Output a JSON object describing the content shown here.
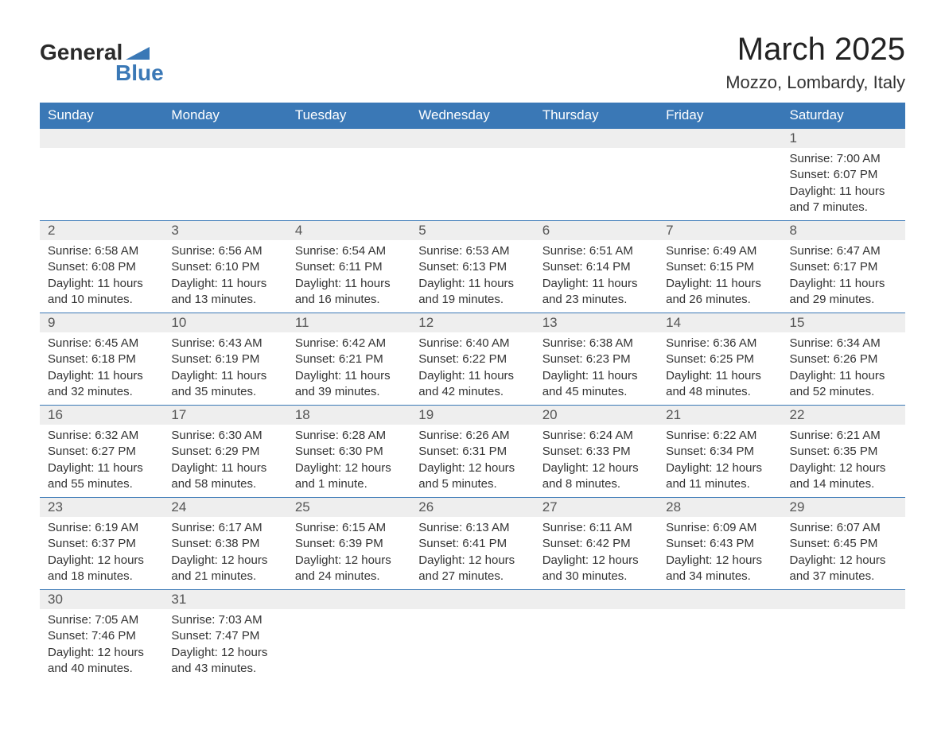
{
  "logo": {
    "text1": "General",
    "text2": "Blue",
    "icon_color": "#3a78b6"
  },
  "title": "March 2025",
  "location": "Mozzo, Lombardy, Italy",
  "colors": {
    "header_bg": "#3a78b6",
    "header_fg": "#ffffff",
    "daynum_bg": "#eeeeee",
    "border": "#3a78b6",
    "text": "#333333",
    "bg": "#ffffff"
  },
  "fonts": {
    "title_size": 40,
    "location_size": 22,
    "header_size": 17,
    "body_size": 15
  },
  "weekdays": [
    "Sunday",
    "Monday",
    "Tuesday",
    "Wednesday",
    "Thursday",
    "Friday",
    "Saturday"
  ],
  "labels": {
    "sunrise": "Sunrise: ",
    "sunset": "Sunset: ",
    "daylight": "Daylight: "
  },
  "weeks": [
    [
      null,
      null,
      null,
      null,
      null,
      null,
      {
        "n": "1",
        "sr": "7:00 AM",
        "ss": "6:07 PM",
        "dl": "11 hours and 7 minutes."
      }
    ],
    [
      {
        "n": "2",
        "sr": "6:58 AM",
        "ss": "6:08 PM",
        "dl": "11 hours and 10 minutes."
      },
      {
        "n": "3",
        "sr": "6:56 AM",
        "ss": "6:10 PM",
        "dl": "11 hours and 13 minutes."
      },
      {
        "n": "4",
        "sr": "6:54 AM",
        "ss": "6:11 PM",
        "dl": "11 hours and 16 minutes."
      },
      {
        "n": "5",
        "sr": "6:53 AM",
        "ss": "6:13 PM",
        "dl": "11 hours and 19 minutes."
      },
      {
        "n": "6",
        "sr": "6:51 AM",
        "ss": "6:14 PM",
        "dl": "11 hours and 23 minutes."
      },
      {
        "n": "7",
        "sr": "6:49 AM",
        "ss": "6:15 PM",
        "dl": "11 hours and 26 minutes."
      },
      {
        "n": "8",
        "sr": "6:47 AM",
        "ss": "6:17 PM",
        "dl": "11 hours and 29 minutes."
      }
    ],
    [
      {
        "n": "9",
        "sr": "6:45 AM",
        "ss": "6:18 PM",
        "dl": "11 hours and 32 minutes."
      },
      {
        "n": "10",
        "sr": "6:43 AM",
        "ss": "6:19 PM",
        "dl": "11 hours and 35 minutes."
      },
      {
        "n": "11",
        "sr": "6:42 AM",
        "ss": "6:21 PM",
        "dl": "11 hours and 39 minutes."
      },
      {
        "n": "12",
        "sr": "6:40 AM",
        "ss": "6:22 PM",
        "dl": "11 hours and 42 minutes."
      },
      {
        "n": "13",
        "sr": "6:38 AM",
        "ss": "6:23 PM",
        "dl": "11 hours and 45 minutes."
      },
      {
        "n": "14",
        "sr": "6:36 AM",
        "ss": "6:25 PM",
        "dl": "11 hours and 48 minutes."
      },
      {
        "n": "15",
        "sr": "6:34 AM",
        "ss": "6:26 PM",
        "dl": "11 hours and 52 minutes."
      }
    ],
    [
      {
        "n": "16",
        "sr": "6:32 AM",
        "ss": "6:27 PM",
        "dl": "11 hours and 55 minutes."
      },
      {
        "n": "17",
        "sr": "6:30 AM",
        "ss": "6:29 PM",
        "dl": "11 hours and 58 minutes."
      },
      {
        "n": "18",
        "sr": "6:28 AM",
        "ss": "6:30 PM",
        "dl": "12 hours and 1 minute."
      },
      {
        "n": "19",
        "sr": "6:26 AM",
        "ss": "6:31 PM",
        "dl": "12 hours and 5 minutes."
      },
      {
        "n": "20",
        "sr": "6:24 AM",
        "ss": "6:33 PM",
        "dl": "12 hours and 8 minutes."
      },
      {
        "n": "21",
        "sr": "6:22 AM",
        "ss": "6:34 PM",
        "dl": "12 hours and 11 minutes."
      },
      {
        "n": "22",
        "sr": "6:21 AM",
        "ss": "6:35 PM",
        "dl": "12 hours and 14 minutes."
      }
    ],
    [
      {
        "n": "23",
        "sr": "6:19 AM",
        "ss": "6:37 PM",
        "dl": "12 hours and 18 minutes."
      },
      {
        "n": "24",
        "sr": "6:17 AM",
        "ss": "6:38 PM",
        "dl": "12 hours and 21 minutes."
      },
      {
        "n": "25",
        "sr": "6:15 AM",
        "ss": "6:39 PM",
        "dl": "12 hours and 24 minutes."
      },
      {
        "n": "26",
        "sr": "6:13 AM",
        "ss": "6:41 PM",
        "dl": "12 hours and 27 minutes."
      },
      {
        "n": "27",
        "sr": "6:11 AM",
        "ss": "6:42 PM",
        "dl": "12 hours and 30 minutes."
      },
      {
        "n": "28",
        "sr": "6:09 AM",
        "ss": "6:43 PM",
        "dl": "12 hours and 34 minutes."
      },
      {
        "n": "29",
        "sr": "6:07 AM",
        "ss": "6:45 PM",
        "dl": "12 hours and 37 minutes."
      }
    ],
    [
      {
        "n": "30",
        "sr": "7:05 AM",
        "ss": "7:46 PM",
        "dl": "12 hours and 40 minutes."
      },
      {
        "n": "31",
        "sr": "7:03 AM",
        "ss": "7:47 PM",
        "dl": "12 hours and 43 minutes."
      },
      null,
      null,
      null,
      null,
      null
    ]
  ]
}
